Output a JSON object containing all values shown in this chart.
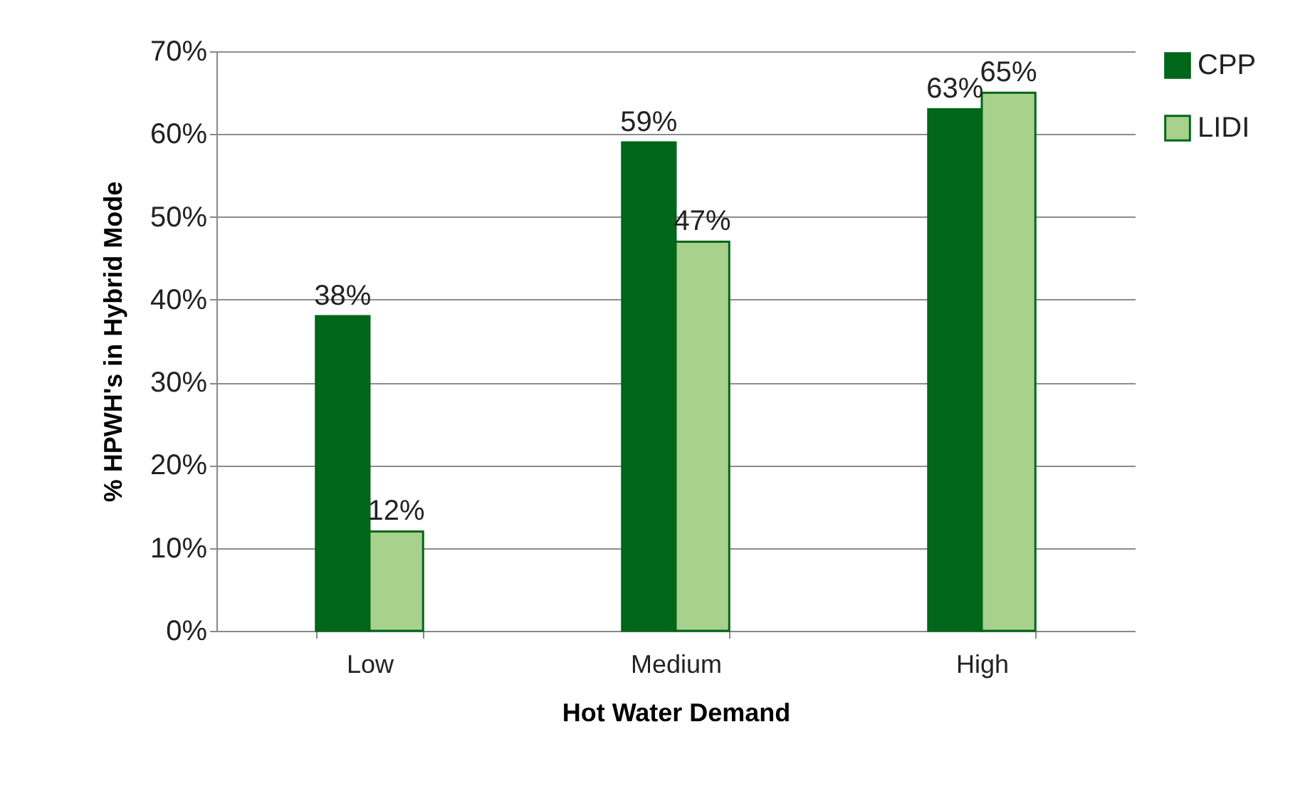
{
  "chart_data": {
    "type": "bar",
    "xlabel": "Hot Water Demand",
    "ylabel": "% HPWH's in Hybrid Mode",
    "categories": [
      "Low",
      "Medium",
      "High"
    ],
    "series": [
      {
        "name": "CPP",
        "color": "#006619",
        "values": [
          38,
          59,
          63
        ],
        "value_labels": [
          "38%",
          "59%",
          "63%"
        ]
      },
      {
        "name": "LIDI",
        "color": "#a9d18e",
        "values": [
          12,
          47,
          65
        ],
        "value_labels": [
          "12%",
          "47%",
          "65%"
        ]
      }
    ],
    "ylim": [
      0,
      70
    ],
    "yticks": [
      {
        "value": 0,
        "label": "0%"
      },
      {
        "value": 10,
        "label": "10%"
      },
      {
        "value": 20,
        "label": "20%"
      },
      {
        "value": 30,
        "label": "30%"
      },
      {
        "value": 40,
        "label": "40%"
      },
      {
        "value": 50,
        "label": "50%"
      },
      {
        "value": 60,
        "label": "60%"
      },
      {
        "value": 70,
        "label": "70%"
      }
    ],
    "grid": "y",
    "legend": "right"
  }
}
